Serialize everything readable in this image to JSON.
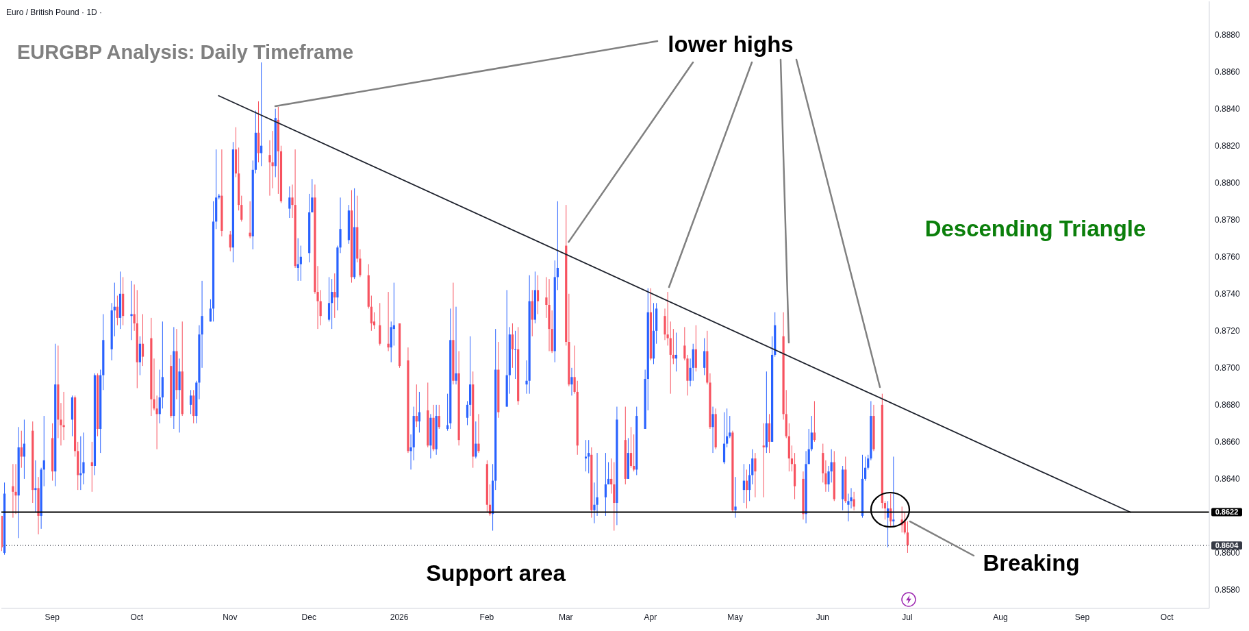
{
  "chart_data": {
    "type": "candlestick",
    "title": "EURGBP Analysis: Daily Timeframe",
    "subtitle": "Euro / British Pound · 1D ·",
    "annotations": [
      {
        "text": "lower highs",
        "x": "2026-03-03",
        "y": 0.8768
      },
      "Descending Triangle",
      "Support area",
      {
        "text": "Breaking",
        "x": "2026-07-01",
        "y": 0.8617
      }
    ],
    "x": [
      "2025-08-14",
      "2025-08-15",
      "2025-08-18",
      "2025-08-19",
      "2025-08-20",
      "2025-08-21",
      "2025-08-22",
      "2025-08-25",
      "2025-08-26",
      "2025-08-27",
      "2025-08-28",
      "2025-08-29",
      "2025-09-01",
      "2025-09-02",
      "2025-09-03",
      "2025-09-04",
      "2025-09-05",
      "2025-09-08",
      "2025-09-09",
      "2025-09-10",
      "2025-09-11",
      "2025-09-12",
      "2025-09-15",
      "2025-09-16",
      "2025-09-17",
      "2025-09-18",
      "2025-09-19",
      "2025-09-22",
      "2025-09-23",
      "2025-09-24",
      "2025-09-25",
      "2025-09-26",
      "2025-09-29",
      "2025-09-30",
      "2025-10-01",
      "2025-10-02",
      "2025-10-03",
      "2025-10-06",
      "2025-10-07",
      "2025-10-08",
      "2025-10-09",
      "2025-10-10",
      "2025-10-13",
      "2025-10-14",
      "2025-10-15",
      "2025-10-16",
      "2025-10-17",
      "2025-10-20",
      "2025-10-21",
      "2025-10-22",
      "2025-10-23",
      "2025-10-24",
      "2025-10-27",
      "2025-10-28",
      "2025-10-29",
      "2025-10-30",
      "2025-10-31",
      "2025-11-03",
      "2025-11-04",
      "2025-11-05",
      "2025-11-06",
      "2025-11-07",
      "2025-11-10",
      "2025-11-11",
      "2025-11-12",
      "2025-11-13",
      "2025-11-14",
      "2025-11-17",
      "2025-11-18",
      "2025-11-19",
      "2025-11-20",
      "2025-11-21",
      "2025-11-24",
      "2025-11-25",
      "2025-11-26",
      "2025-11-27",
      "2025-11-28",
      "2025-12-01",
      "2025-12-02",
      "2025-12-03",
      "2025-12-04",
      "2025-12-05",
      "2025-12-08",
      "2025-12-09",
      "2025-12-10",
      "2025-12-11",
      "2025-12-12",
      "2025-12-15",
      "2025-12-16",
      "2025-12-17",
      "2025-12-18",
      "2025-12-19",
      "2025-12-22",
      "2025-12-23",
      "2025-12-24",
      "2025-12-26",
      "2025-12-29",
      "2025-12-30",
      "2025-12-31",
      "2026-01-02",
      "2026-01-05",
      "2026-01-06",
      "2026-01-07",
      "2026-01-08",
      "2026-01-09",
      "2026-01-12",
      "2026-01-13",
      "2026-01-14",
      "2026-01-15",
      "2026-01-16",
      "2026-01-19",
      "2026-01-20",
      "2026-01-21",
      "2026-01-22",
      "2026-01-23",
      "2026-01-26",
      "2026-01-27",
      "2026-01-28",
      "2026-01-29",
      "2026-01-30",
      "2026-02-02",
      "2026-02-03",
      "2026-02-04",
      "2026-02-05",
      "2026-02-06",
      "2026-02-09",
      "2026-02-10",
      "2026-02-11",
      "2026-02-12",
      "2026-02-13",
      "2026-02-16",
      "2026-02-17",
      "2026-02-18",
      "2026-02-19",
      "2026-02-20",
      "2026-02-23",
      "2026-02-24",
      "2026-02-25",
      "2026-02-26",
      "2026-02-27",
      "2026-03-02",
      "2026-03-03",
      "2026-03-04",
      "2026-03-05",
      "2026-03-06",
      "2026-03-09",
      "2026-03-10",
      "2026-03-11",
      "2026-03-12",
      "2026-03-13",
      "2026-03-16",
      "2026-03-17",
      "2026-03-18",
      "2026-03-19",
      "2026-03-20",
      "2026-03-23",
      "2026-03-24",
      "2026-03-25",
      "2026-03-26",
      "2026-03-27",
      "2026-03-30",
      "2026-03-31",
      "2026-04-01",
      "2026-04-02",
      "2026-04-03",
      "2026-04-06",
      "2026-04-07",
      "2026-04-08",
      "2026-04-09",
      "2026-04-10",
      "2026-04-13",
      "2026-04-14",
      "2026-04-15",
      "2026-04-16",
      "2026-04-17",
      "2026-04-20",
      "2026-04-21",
      "2026-04-22",
      "2026-04-23",
      "2026-04-24",
      "2026-04-27",
      "2026-04-28",
      "2026-04-29",
      "2026-04-30",
      "2026-05-01",
      "2026-05-04",
      "2026-05-05",
      "2026-05-06",
      "2026-05-07",
      "2026-05-08",
      "2026-05-11",
      "2026-05-12",
      "2026-05-13",
      "2026-05-14",
      "2026-05-15",
      "2026-05-18",
      "2026-05-19",
      "2026-05-20",
      "2026-05-21",
      "2026-05-22",
      "2026-05-25",
      "2026-05-26",
      "2026-05-27",
      "2026-05-28",
      "2026-05-29",
      "2026-06-01",
      "2026-06-02",
      "2026-06-03",
      "2026-06-04",
      "2026-06-05",
      "2026-06-08",
      "2026-06-09",
      "2026-06-10",
      "2026-06-11",
      "2026-06-12",
      "2026-06-15",
      "2026-06-16",
      "2026-06-17",
      "2026-06-18",
      "2026-06-19",
      "2026-06-22",
      "2026-06-23",
      "2026-06-24",
      "2026-06-25",
      "2026-06-26",
      "2026-06-29",
      "2026-06-30",
      "2026-07-01"
    ],
    "ohlc": [
      [
        0.862,
        0.862,
        0.8601,
        0.8603
      ],
      [
        0.86,
        0.8638,
        0.8599,
        0.8632
      ],
      [
        0.8636,
        0.8648,
        0.8619,
        0.8633
      ],
      [
        0.8633,
        0.8648,
        0.8621,
        0.8631
      ],
      [
        0.8631,
        0.8668,
        0.8608,
        0.8657
      ],
      [
        0.8657,
        0.8666,
        0.8646,
        0.8652
      ],
      [
        0.8652,
        0.8672,
        0.864,
        0.8659
      ],
      [
        0.8666,
        0.8671,
        0.8627,
        0.8634
      ],
      [
        0.8634,
        0.865,
        0.8622,
        0.8635
      ],
      [
        0.8635,
        0.8641,
        0.861,
        0.862
      ],
      [
        0.862,
        0.8646,
        0.8613,
        0.8645
      ],
      [
        0.8645,
        0.8674,
        0.8636,
        0.865
      ],
      [
        0.8662,
        0.867,
        0.8639,
        0.8644
      ],
      [
        0.8644,
        0.8713,
        0.8636,
        0.8691
      ],
      [
        0.8691,
        0.8712,
        0.8662,
        0.8672
      ],
      [
        0.8672,
        0.8681,
        0.8658,
        0.8669
      ],
      [
        0.8669,
        0.8687,
        0.8661,
        0.8668
      ],
      [
        0.8672,
        0.8685,
        0.8663,
        0.8684
      ],
      [
        0.8684,
        0.8685,
        0.8652,
        0.8655
      ],
      [
        0.8655,
        0.866,
        0.8634,
        0.8642
      ],
      [
        0.8642,
        0.8663,
        0.8634,
        0.8643
      ],
      [
        0.8643,
        0.8665,
        0.8637,
        0.8649
      ],
      [
        0.8649,
        0.866,
        0.8633,
        0.8647
      ],
      [
        0.8647,
        0.8697,
        0.8642,
        0.8696
      ],
      [
        0.8696,
        0.8697,
        0.8663,
        0.8667
      ],
      [
        0.8667,
        0.8699,
        0.8654,
        0.8696
      ],
      [
        0.8696,
        0.8729,
        0.8688,
        0.8715
      ],
      [
        0.871,
        0.8735,
        0.8704,
        0.8731
      ],
      [
        0.8731,
        0.8746,
        0.8717,
        0.8733
      ],
      [
        0.8733,
        0.8739,
        0.8723,
        0.8727
      ],
      [
        0.8727,
        0.8752,
        0.8721,
        0.874
      ],
      [
        0.874,
        0.8749,
        0.8723,
        0.8728
      ],
      [
        0.8728,
        0.8747,
        0.8715,
        0.8729
      ],
      [
        0.8729,
        0.8745,
        0.872,
        0.8724
      ],
      [
        0.8724,
        0.8742,
        0.8689,
        0.8703
      ],
      [
        0.8703,
        0.8717,
        0.8696,
        0.8713
      ],
      [
        0.8713,
        0.8729,
        0.8701,
        0.8706
      ],
      [
        0.8716,
        0.8727,
        0.8674,
        0.8683
      ],
      [
        0.8683,
        0.8705,
        0.8677,
        0.8678
      ],
      [
        0.8678,
        0.8685,
        0.8656,
        0.8675
      ],
      [
        0.8675,
        0.8699,
        0.867,
        0.8684
      ],
      [
        0.8684,
        0.8725,
        0.8678,
        0.8695
      ],
      [
        0.8701,
        0.8707,
        0.8673,
        0.8674
      ],
      [
        0.8674,
        0.8722,
        0.8667,
        0.8709
      ],
      [
        0.8709,
        0.8721,
        0.8683,
        0.8688
      ],
      [
        0.8688,
        0.8705,
        0.8665,
        0.8698
      ],
      [
        0.8698,
        0.8725,
        0.8674,
        0.8675
      ],
      [
        0.868,
        0.8688,
        0.8675,
        0.8685
      ],
      [
        0.8685,
        0.8688,
        0.867,
        0.8674
      ],
      [
        0.8674,
        0.8693,
        0.867,
        0.8692
      ],
      [
        0.8692,
        0.8723,
        0.8683,
        0.8718
      ],
      [
        0.8718,
        0.8747,
        0.87,
        0.8728
      ],
      [
        0.8725,
        0.8737,
        0.8725,
        0.8732
      ],
      [
        0.8732,
        0.879,
        0.8725,
        0.8779
      ],
      [
        0.8779,
        0.8818,
        0.8775,
        0.8792
      ],
      [
        0.8792,
        0.8794,
        0.8791,
        0.8793
      ],
      [
        0.8793,
        0.8818,
        0.8771,
        0.8774
      ],
      [
        0.8772,
        0.8774,
        0.8763,
        0.8765
      ],
      [
        0.8765,
        0.8822,
        0.8757,
        0.8818
      ],
      [
        0.8818,
        0.883,
        0.8803,
        0.8805
      ],
      [
        0.8805,
        0.8819,
        0.8785,
        0.8788
      ],
      [
        0.8788,
        0.8793,
        0.8779,
        0.878
      ],
      [
        0.8773,
        0.879,
        0.877,
        0.8771
      ],
      [
        0.8771,
        0.8812,
        0.8764,
        0.8807
      ],
      [
        0.8807,
        0.8839,
        0.8805,
        0.8827
      ],
      [
        0.8827,
        0.8844,
        0.8811,
        0.8816
      ],
      [
        0.8816,
        0.8865,
        0.8809,
        0.882
      ],
      [
        0.8815,
        0.8823,
        0.8793,
        0.8811
      ],
      [
        0.8811,
        0.8828,
        0.8797,
        0.8809
      ],
      [
        0.8809,
        0.884,
        0.8803,
        0.8835
      ],
      [
        0.8834,
        0.8841,
        0.8794,
        0.8817
      ],
      [
        0.8817,
        0.882,
        0.8789,
        0.879
      ],
      [
        0.8786,
        0.8798,
        0.8781,
        0.8792
      ],
      [
        0.8792,
        0.8799,
        0.8781,
        0.8788
      ],
      [
        0.8788,
        0.8818,
        0.8754,
        0.8755
      ],
      [
        0.8754,
        0.877,
        0.8747,
        0.8756
      ],
      [
        0.8756,
        0.8766,
        0.8747,
        0.876
      ],
      [
        0.8762,
        0.8794,
        0.8757,
        0.8784
      ],
      [
        0.8784,
        0.8802,
        0.8784,
        0.8792
      ],
      [
        0.8792,
        0.8799,
        0.874,
        0.8741
      ],
      [
        0.8741,
        0.8755,
        0.8721,
        0.8736
      ],
      [
        0.8736,
        0.8742,
        0.8723,
        0.8728
      ],
      [
        0.8726,
        0.8749,
        0.8725,
        0.8735
      ],
      [
        0.8735,
        0.8748,
        0.8721,
        0.8741
      ],
      [
        0.8741,
        0.8751,
        0.8727,
        0.8738
      ],
      [
        0.8738,
        0.8766,
        0.8731,
        0.8765
      ],
      [
        0.8765,
        0.8792,
        0.8762,
        0.8775
      ],
      [
        0.8769,
        0.8788,
        0.8767,
        0.8785
      ],
      [
        0.8785,
        0.8796,
        0.8746,
        0.8749
      ],
      [
        0.8749,
        0.8797,
        0.8748,
        0.8776
      ],
      [
        0.8776,
        0.8793,
        0.8757,
        0.8759
      ],
      [
        0.8759,
        0.8764,
        0.8749,
        0.875
      ],
      [
        0.875,
        0.8756,
        0.8732,
        0.8733
      ],
      [
        0.8733,
        0.8739,
        0.872,
        0.8724
      ],
      [
        0.8725,
        0.873,
        0.8721,
        0.8723
      ],
      [
        0.8723,
        0.8735,
        0.8712,
        0.8713
      ],
      [
        0.8713,
        0.8741,
        0.8709,
        0.8711
      ],
      [
        0.8711,
        0.8725,
        0.8703,
        0.8722
      ],
      [
        0.8721,
        0.8746,
        0.8712,
        0.8723
      ],
      [
        0.8724,
        0.8724,
        0.87,
        0.8701
      ],
      [
        0.8704,
        0.8711,
        0.8654,
        0.8655
      ],
      [
        0.8655,
        0.8664,
        0.8645,
        0.8657
      ],
      [
        0.8657,
        0.8679,
        0.865,
        0.8674
      ],
      [
        0.8674,
        0.8691,
        0.8668,
        0.8671
      ],
      [
        0.8671,
        0.8687,
        0.8665,
        0.8676
      ],
      [
        0.8677,
        0.8692,
        0.8657,
        0.8658
      ],
      [
        0.8658,
        0.8675,
        0.8651,
        0.8673
      ],
      [
        0.8673,
        0.868,
        0.8655,
        0.8656
      ],
      [
        0.8656,
        0.868,
        0.8653,
        0.8674
      ],
      [
        0.8674,
        0.868,
        0.8667,
        0.8668
      ],
      [
        0.8667,
        0.8686,
        0.8666,
        0.8669
      ],
      [
        0.867,
        0.8732,
        0.8667,
        0.8715
      ],
      [
        0.8715,
        0.8746,
        0.8691,
        0.8693
      ],
      [
        0.8693,
        0.8733,
        0.8691,
        0.8697
      ],
      [
        0.8697,
        0.8709,
        0.8658,
        0.8661
      ],
      [
        0.8673,
        0.8682,
        0.8669,
        0.868
      ],
      [
        0.868,
        0.8717,
        0.8674,
        0.8691
      ],
      [
        0.8691,
        0.8698,
        0.8646,
        0.8652
      ],
      [
        0.8652,
        0.8671,
        0.8651,
        0.8659
      ],
      [
        0.8659,
        0.8675,
        0.8654,
        0.8655
      ],
      [
        0.8648,
        0.865,
        0.8622,
        0.8626
      ],
      [
        0.8626,
        0.8637,
        0.862,
        0.8621
      ],
      [
        0.8621,
        0.8648,
        0.8612,
        0.8639
      ],
      [
        0.8639,
        0.8721,
        0.8634,
        0.8699
      ],
      [
        0.8699,
        0.8714,
        0.8673,
        0.8676
      ],
      [
        0.8679,
        0.8742,
        0.8679,
        0.8696
      ],
      [
        0.8696,
        0.8722,
        0.8686,
        0.8718
      ],
      [
        0.8718,
        0.8724,
        0.87,
        0.871
      ],
      [
        0.871,
        0.872,
        0.8694,
        0.871
      ],
      [
        0.871,
        0.8722,
        0.868,
        0.8682
      ],
      [
        0.8691,
        0.8704,
        0.8686,
        0.8693
      ],
      [
        0.8693,
        0.875,
        0.8686,
        0.8736
      ],
      [
        0.8736,
        0.8742,
        0.8717,
        0.8726
      ],
      [
        0.8726,
        0.8752,
        0.8724,
        0.8742
      ],
      [
        0.8742,
        0.875,
        0.8729,
        0.8736
      ],
      [
        0.8738,
        0.8749,
        0.8727,
        0.8734
      ],
      [
        0.8734,
        0.8748,
        0.8709,
        0.8721
      ],
      [
        0.8721,
        0.8731,
        0.8708,
        0.8709
      ],
      [
        0.8709,
        0.8758,
        0.8703,
        0.8749
      ],
      [
        0.8749,
        0.879,
        0.8742,
        0.8754
      ],
      [
        0.8766,
        0.8788,
        0.8712,
        0.8714
      ],
      [
        0.8714,
        0.874,
        0.869,
        0.8691
      ],
      [
        0.8691,
        0.87,
        0.8685,
        0.8695
      ],
      [
        0.8695,
        0.8712,
        0.8686,
        0.8687
      ],
      [
        0.8687,
        0.8693,
        0.8653,
        0.8658
      ],
      [
        0.8651,
        0.8661,
        0.8644,
        0.8652
      ],
      [
        0.8652,
        0.8661,
        0.8643,
        0.8654
      ],
      [
        0.8653,
        0.8657,
        0.8619,
        0.8623
      ],
      [
        0.8623,
        0.8638,
        0.8616,
        0.8626
      ],
      [
        0.8626,
        0.8654,
        0.862,
        0.863
      ],
      [
        0.863,
        0.8654,
        0.862,
        0.8637
      ],
      [
        0.8637,
        0.8649,
        0.8637,
        0.864
      ],
      [
        0.864,
        0.8651,
        0.8632,
        0.8637
      ],
      [
        0.8637,
        0.8649,
        0.8612,
        0.8627
      ],
      [
        0.8627,
        0.8679,
        0.8615,
        0.8672
      ],
      [
        0.8661,
        0.8679,
        0.8637,
        0.864
      ],
      [
        0.864,
        0.8662,
        0.864,
        0.8654
      ],
      [
        0.8654,
        0.8668,
        0.8646,
        0.8647
      ],
      [
        0.8647,
        0.8664,
        0.8644,
        0.8645
      ],
      [
        0.8645,
        0.8679,
        0.8642,
        0.8674
      ],
      [
        0.8667,
        0.8699,
        0.8667,
        0.8694
      ],
      [
        0.8694,
        0.8743,
        0.8677,
        0.873
      ],
      [
        0.873,
        0.8743,
        0.8704,
        0.8705
      ],
      [
        0.8705,
        0.8735,
        0.8702,
        0.872
      ],
      [
        0.872,
        0.8735,
        0.8713,
        0.8732
      ],
      [
        0.8728,
        0.8732,
        0.8715,
        0.8718
      ],
      [
        0.8718,
        0.8741,
        0.8712,
        0.8716
      ],
      [
        0.8716,
        0.8725,
        0.8686,
        0.8707
      ],
      [
        0.8707,
        0.8721,
        0.8702,
        0.8705
      ],
      [
        0.8705,
        0.8719,
        0.8698,
        0.8707
      ],
      [
        0.8712,
        0.8722,
        0.8704,
        0.8705
      ],
      [
        0.8705,
        0.8707,
        0.8685,
        0.8693
      ],
      [
        0.8693,
        0.8705,
        0.869,
        0.87
      ],
      [
        0.87,
        0.8713,
        0.8693,
        0.871
      ],
      [
        0.871,
        0.8723,
        0.8698,
        0.87
      ],
      [
        0.87,
        0.8716,
        0.8696,
        0.8709
      ],
      [
        0.8709,
        0.872,
        0.8691,
        0.8692
      ],
      [
        0.8692,
        0.8697,
        0.8667,
        0.8668
      ],
      [
        0.8668,
        0.8679,
        0.8654,
        0.8675
      ],
      [
        0.8675,
        0.8678,
        0.8656,
        0.8657
      ],
      [
        0.8649,
        0.8676,
        0.8648,
        0.8659
      ],
      [
        0.8659,
        0.8678,
        0.8657,
        0.8663
      ],
      [
        0.8663,
        0.8674,
        0.8662,
        0.8665
      ],
      [
        0.8665,
        0.8666,
        0.8622,
        0.8623
      ],
      [
        0.8623,
        0.8641,
        0.8619,
        0.8625
      ],
      [
        0.8634,
        0.8648,
        0.8627,
        0.8639
      ],
      [
        0.8639,
        0.8645,
        0.8624,
        0.8634
      ],
      [
        0.8634,
        0.8648,
        0.8628,
        0.8642
      ],
      [
        0.8642,
        0.8656,
        0.8637,
        0.8651
      ],
      [
        0.8651,
        0.8654,
        0.863,
        0.8644
      ],
      [
        0.8658,
        0.867,
        0.863,
        0.8657
      ],
      [
        0.8657,
        0.8698,
        0.8654,
        0.867
      ],
      [
        0.867,
        0.8675,
        0.8654,
        0.866
      ],
      [
        0.866,
        0.8717,
        0.866,
        0.8707
      ],
      [
        0.8707,
        0.873,
        0.8706,
        0.8723
      ],
      [
        0.8717,
        0.873,
        0.8672,
        0.8675
      ],
      [
        0.8675,
        0.8688,
        0.8662,
        0.8663
      ],
      [
        0.8663,
        0.867,
        0.8644,
        0.8651
      ],
      [
        0.8651,
        0.8658,
        0.8644,
        0.8648
      ],
      [
        0.8648,
        0.8654,
        0.8629,
        0.8636
      ],
      [
        0.864,
        0.8644,
        0.8618,
        0.8621
      ],
      [
        0.8621,
        0.8655,
        0.8616,
        0.8648
      ],
      [
        0.8648,
        0.8667,
        0.8648,
        0.8656
      ],
      [
        0.8656,
        0.8674,
        0.8655,
        0.8665
      ],
      [
        0.8665,
        0.8682,
        0.866,
        0.8661
      ],
      [
        0.8654,
        0.8659,
        0.8638,
        0.8643
      ],
      [
        0.8643,
        0.865,
        0.8633,
        0.8637
      ],
      [
        0.8637,
        0.8647,
        0.8633,
        0.8644
      ],
      [
        0.8644,
        0.8656,
        0.8638,
        0.8649
      ],
      [
        0.8649,
        0.8655,
        0.8628,
        0.8629
      ],
      [
        0.8629,
        0.8647,
        0.8623,
        0.8645
      ],
      [
        0.8645,
        0.8652,
        0.8627,
        0.8628
      ],
      [
        0.8626,
        0.8632,
        0.8617,
        0.8628
      ],
      [
        0.8628,
        0.8635,
        0.8624,
        0.863
      ],
      [
        0.8629,
        0.8633,
        0.8623,
        0.8625
      ],
      [
        0.862,
        0.8653,
        0.8619,
        0.864
      ],
      [
        0.864,
        0.8652,
        0.8639,
        0.8646
      ],
      [
        0.8646,
        0.8653,
        0.8645,
        0.8651
      ],
      [
        0.8651,
        0.8682,
        0.865,
        0.8674
      ],
      [
        0.8674,
        0.868,
        0.8655,
        0.8656
      ],
      [
        0.868,
        0.8686,
        0.8624,
        0.8627
      ],
      [
        0.8627,
        0.8628,
        0.8618,
        0.8624
      ],
      [
        0.8619,
        0.8628,
        0.8603,
        0.8624
      ],
      [
        0.8624,
        0.8632,
        0.8614,
        0.8617
      ],
      [
        0.8617,
        0.8652,
        0.8614,
        0.8618
      ],
      [
        0.8618,
        0.8625,
        0.8611,
        0.8615
      ],
      [
        0.8617,
        0.8622,
        0.861,
        0.8611
      ],
      [
        0.8611,
        0.8617,
        0.86,
        0.8604
      ]
    ],
    "colors": [
      "#f7525f",
      "#2962ff",
      "#f7525f",
      "#f7525f",
      "#2962ff",
      "#f7525f",
      "#2962ff",
      "#f7525f",
      "#2962ff",
      "#f7525f",
      "#2962ff",
      "#2962ff",
      "#f7525f",
      "#2962ff",
      "#f7525f",
      "#f7525f",
      "#f7525f",
      "#2962ff",
      "#f7525f",
      "#f7525f",
      "#2962ff",
      "#2962ff",
      "#f7525f",
      "#2962ff",
      "#f7525f",
      "#2962ff",
      "#2962ff",
      "#2962ff",
      "#2962ff",
      "#f7525f",
      "#2962ff",
      "#f7525f",
      "#2962ff",
      "#f7525f",
      "#f7525f",
      "#2962ff",
      "#f7525f",
      "#f7525f",
      "#f7525f",
      "#f7525f",
      "#2962ff",
      "#2962ff",
      "#f7525f",
      "#2962ff",
      "#f7525f",
      "#2962ff",
      "#f7525f",
      "#2962ff",
      "#f7525f",
      "#2962ff",
      "#2962ff",
      "#2962ff",
      "#2962ff",
      "#2962ff",
      "#2962ff",
      "#2962ff",
      "#f7525f",
      "#f7525f",
      "#2962ff",
      "#f7525f",
      "#f7525f",
      "#f7525f",
      "#f7525f",
      "#2962ff",
      "#2962ff",
      "#f7525f",
      "#2962ff",
      "#f7525f",
      "#f7525f",
      "#2962ff",
      "#f7525f",
      "#f7525f",
      "#2962ff",
      "#f7525f",
      "#f7525f",
      "#2962ff",
      "#2962ff",
      "#2962ff",
      "#2962ff",
      "#f7525f",
      "#f7525f",
      "#f7525f",
      "#2962ff",
      "#2962ff",
      "#f7525f",
      "#2962ff",
      "#2962ff",
      "#2962ff",
      "#f7525f",
      "#2962ff",
      "#f7525f",
      "#f7525f",
      "#f7525f",
      "#f7525f",
      "#f7525f",
      "#f7525f",
      "#f7525f",
      "#2962ff",
      "#2962ff",
      "#f7525f",
      "#f7525f",
      "#2962ff",
      "#2962ff",
      "#f7525f",
      "#2962ff",
      "#f7525f",
      "#2962ff",
      "#f7525f",
      "#2962ff",
      "#f7525f",
      "#2962ff",
      "#2962ff",
      "#f7525f",
      "#2962ff",
      "#f7525f",
      "#2962ff",
      "#2962ff",
      "#f7525f",
      "#2962ff",
      "#f7525f",
      "#f7525f",
      "#f7525f",
      "#2962ff",
      "#2962ff",
      "#f7525f",
      "#2962ff",
      "#2962ff",
      "#f7525f",
      "#2962ff",
      "#f7525f",
      "#2962ff",
      "#2962ff",
      "#f7525f",
      "#2962ff",
      "#f7525f",
      "#f7525f",
      "#f7525f",
      "#f7525f",
      "#2962ff",
      "#2962ff",
      "#f7525f",
      "#f7525f",
      "#2962ff",
      "#f7525f",
      "#f7525f",
      "#2962ff",
      "#2962ff",
      "#f7525f",
      "#2962ff",
      "#2962ff",
      "#2962ff",
      "#2962ff",
      "#f7525f",
      "#f7525f",
      "#2962ff",
      "#f7525f",
      "#2962ff",
      "#f7525f",
      "#f7525f",
      "#2962ff",
      "#2962ff",
      "#2962ff",
      "#f7525f",
      "#2962ff",
      "#2962ff",
      "#f7525f",
      "#f7525f",
      "#f7525f",
      "#f7525f",
      "#2962ff",
      "#f7525f",
      "#f7525f",
      "#2962ff",
      "#2962ff",
      "#f7525f",
      "#2962ff",
      "#f7525f",
      "#f7525f",
      "#2962ff",
      "#f7525f",
      "#2962ff",
      "#2962ff",
      "#2962ff",
      "#f7525f",
      "#2962ff",
      "#2962ff",
      "#f7525f",
      "#2962ff",
      "#2962ff",
      "#f7525f",
      "#f7525f",
      "#2962ff",
      "#f7525f",
      "#2962ff",
      "#2962ff",
      "#f7525f",
      "#f7525f",
      "#f7525f",
      "#f7525f",
      "#f7525f",
      "#f7525f",
      "#2962ff",
      "#2962ff",
      "#2962ff",
      "#f7525f",
      "#f7525f",
      "#f7525f",
      "#2962ff",
      "#2962ff",
      "#f7525f",
      "#2962ff",
      "#f7525f",
      "#2962ff",
      "#2962ff",
      "#f7525f",
      "#2962ff",
      "#2962ff",
      "#2962ff",
      "#2962ff",
      "#f7525f",
      "#f7525f",
      "#f7525f",
      "#2962ff",
      "#f7525f",
      "#2962ff",
      "#f7525f",
      "#f7525f",
      "#f7525f"
    ],
    "series": [
      {
        "type": "line",
        "x": [
          "2025-10-30",
          "2026-09-18"
        ],
        "values": [
          0.8847,
          0.8622
        ],
        "color": "#1e222d"
      }
    ],
    "ref_lines": [
      {
        "axis": "y",
        "value": 0.8622,
        "label": "0.8622",
        "color": "#000000",
        "line_style": "solid"
      },
      {
        "axis": "y",
        "value": 0.8604,
        "label": "0.8604",
        "color": "#363a45",
        "line_style": "dotted"
      }
    ],
    "xlim": [
      "2025-08-14",
      "2026-10-16"
    ],
    "xticks": [
      {
        "value": "2025-09-01",
        "label": "Sep"
      },
      {
        "value": "2025-10-01",
        "label": "Oct"
      },
      {
        "value": "2025-11-03",
        "label": "Nov"
      },
      {
        "value": "2025-12-01",
        "label": "Dec"
      },
      {
        "value": "2026-01-02",
        "label": "2026"
      },
      {
        "value": "2026-02-02",
        "label": "Feb"
      },
      {
        "value": "2026-03-02",
        "label": "Mar"
      },
      {
        "value": "2026-04-01",
        "label": "Apr"
      },
      {
        "value": "2026-05-01",
        "label": "May"
      },
      {
        "value": "2026-06-01",
        "label": "Jun"
      },
      {
        "value": "2026-07-01",
        "label": "Jul"
      },
      {
        "value": "2026-08-03",
        "label": "Aug"
      },
      {
        "value": "2026-09-01",
        "label": "Sep"
      },
      {
        "value": "2026-10-01",
        "label": "Oct"
      }
    ],
    "ylim": [
      0.857,
      0.8898
    ],
    "yticks": [
      {
        "value": 0.858,
        "label": "0.8580"
      },
      {
        "value": 0.86,
        "label": "0.8600"
      },
      {
        "value": 0.864,
        "label": "0.8640"
      },
      {
        "value": 0.866,
        "label": "0.8660"
      },
      {
        "value": 0.868,
        "label": "0.8680"
      },
      {
        "value": 0.87,
        "label": "0.8700"
      },
      {
        "value": 0.872,
        "label": "0.8720"
      },
      {
        "value": 0.874,
        "label": "0.8740"
      },
      {
        "value": 0.876,
        "label": "0.8760"
      },
      {
        "value": 0.878,
        "label": "0.8780"
      },
      {
        "value": 0.88,
        "label": "0.8800"
      },
      {
        "value": 0.882,
        "label": "0.8820"
      },
      {
        "value": 0.884,
        "label": "0.8840"
      },
      {
        "value": 0.886,
        "label": "0.8860"
      },
      {
        "value": 0.888,
        "label": "0.8880"
      }
    ]
  }
}
